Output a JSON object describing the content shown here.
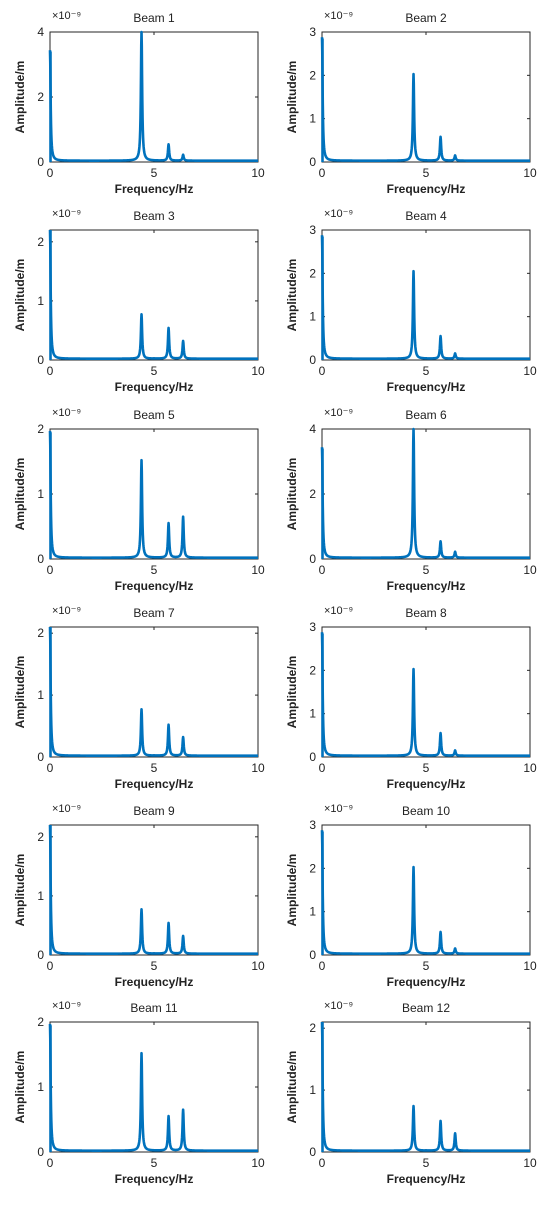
{
  "figure": {
    "line_color": "#0072BD",
    "axis_color": "#262626"
  },
  "chart_data": [
    {
      "type": "line",
      "title": "Beam 1",
      "xlabel": "Frequency/Hz",
      "ylabel": "Amplitude/m",
      "exponent_label": "×10⁻⁹",
      "xlim": [
        0,
        10
      ],
      "ylim": [
        0,
        4
      ],
      "xticks": [
        "0",
        "5",
        "10"
      ],
      "yticks": [
        "0",
        "2",
        "4"
      ],
      "grid": false,
      "series": [
        {
          "peaks": [
            {
              "x": 0.0,
              "y": 3.4
            },
            {
              "x": 4.4,
              "y": 4.0
            },
            {
              "x": 5.7,
              "y": 0.5
            },
            {
              "x": 6.4,
              "y": 0.18
            }
          ]
        }
      ]
    },
    {
      "type": "line",
      "title": "Beam 2",
      "xlabel": "Frequency/Hz",
      "ylabel": "Amplitude/m",
      "exponent_label": "×10⁻⁹",
      "xlim": [
        0,
        10
      ],
      "ylim": [
        0,
        3
      ],
      "xticks": [
        "0",
        "5",
        "10"
      ],
      "yticks": [
        "0",
        "1",
        "2",
        "3"
      ],
      "grid": false,
      "series": [
        {
          "peaks": [
            {
              "x": 0.0,
              "y": 2.85
            },
            {
              "x": 4.4,
              "y": 2.0
            },
            {
              "x": 5.7,
              "y": 0.55
            },
            {
              "x": 6.4,
              "y": 0.12
            }
          ]
        }
      ]
    },
    {
      "type": "line",
      "title": "Beam 3",
      "xlabel": "Frequency/Hz",
      "ylabel": "Amplitude/m",
      "exponent_label": "×10⁻⁹",
      "xlim": [
        0,
        10
      ],
      "ylim": [
        0,
        2.2
      ],
      "xticks": [
        "0",
        "5",
        "10"
      ],
      "yticks": [
        "0",
        "1",
        "2"
      ],
      "grid": false,
      "series": [
        {
          "peaks": [
            {
              "x": 0.0,
              "y": 2.2
            },
            {
              "x": 4.4,
              "y": 0.75
            },
            {
              "x": 5.7,
              "y": 0.52
            },
            {
              "x": 6.4,
              "y": 0.3
            }
          ]
        }
      ]
    },
    {
      "type": "line",
      "title": "Beam 4",
      "xlabel": "Frequency/Hz",
      "ylabel": "Amplitude/m",
      "exponent_label": "×10⁻⁹",
      "xlim": [
        0,
        10
      ],
      "ylim": [
        0,
        3
      ],
      "xticks": [
        "0",
        "5",
        "10"
      ],
      "yticks": [
        "0",
        "1",
        "2",
        "3"
      ],
      "grid": false,
      "series": [
        {
          "peaks": [
            {
              "x": 0.0,
              "y": 2.85
            },
            {
              "x": 4.4,
              "y": 2.02
            },
            {
              "x": 5.7,
              "y": 0.52
            },
            {
              "x": 6.4,
              "y": 0.12
            }
          ]
        }
      ]
    },
    {
      "type": "line",
      "title": "Beam 5",
      "xlabel": "Frequency/Hz",
      "ylabel": "Amplitude/m",
      "exponent_label": "×10⁻⁹",
      "xlim": [
        0,
        10
      ],
      "ylim": [
        0,
        2
      ],
      "xticks": [
        "0",
        "5",
        "10"
      ],
      "yticks": [
        "0",
        "1",
        "2"
      ],
      "grid": false,
      "series": [
        {
          "peaks": [
            {
              "x": 0.0,
              "y": 1.95
            },
            {
              "x": 4.4,
              "y": 1.5
            },
            {
              "x": 5.7,
              "y": 0.53
            },
            {
              "x": 6.4,
              "y": 0.63
            }
          ]
        }
      ]
    },
    {
      "type": "line",
      "title": "Beam 6",
      "xlabel": "Frequency/Hz",
      "ylabel": "Amplitude/m",
      "exponent_label": "×10⁻⁹",
      "xlim": [
        0,
        10
      ],
      "ylim": [
        0,
        4
      ],
      "xticks": [
        "0",
        "5",
        "10"
      ],
      "yticks": [
        "0",
        "2",
        "4"
      ],
      "grid": false,
      "series": [
        {
          "peaks": [
            {
              "x": 0.0,
              "y": 3.4
            },
            {
              "x": 4.4,
              "y": 4.0
            },
            {
              "x": 5.7,
              "y": 0.5
            },
            {
              "x": 6.4,
              "y": 0.18
            }
          ]
        }
      ]
    },
    {
      "type": "line",
      "title": "Beam 7",
      "xlabel": "Frequency/Hz",
      "ylabel": "Amplitude/m",
      "exponent_label": "×10⁻⁹",
      "xlim": [
        0,
        10
      ],
      "ylim": [
        0,
        2.1
      ],
      "xticks": [
        "0",
        "5",
        "10"
      ],
      "yticks": [
        "0",
        "1",
        "2"
      ],
      "grid": false,
      "series": [
        {
          "peaks": [
            {
              "x": 0.0,
              "y": 2.1
            },
            {
              "x": 4.4,
              "y": 0.75
            },
            {
              "x": 5.7,
              "y": 0.5
            },
            {
              "x": 6.4,
              "y": 0.3
            }
          ]
        }
      ]
    },
    {
      "type": "line",
      "title": "Beam 8",
      "xlabel": "Frequency/Hz",
      "ylabel": "Amplitude/m",
      "exponent_label": "×10⁻⁹",
      "xlim": [
        0,
        10
      ],
      "ylim": [
        0,
        3
      ],
      "xticks": [
        "0",
        "5",
        "10"
      ],
      "yticks": [
        "0",
        "1",
        "2",
        "3"
      ],
      "grid": false,
      "series": [
        {
          "peaks": [
            {
              "x": 0.0,
              "y": 2.85
            },
            {
              "x": 4.4,
              "y": 2.0
            },
            {
              "x": 5.7,
              "y": 0.52
            },
            {
              "x": 6.4,
              "y": 0.12
            }
          ]
        }
      ]
    },
    {
      "type": "line",
      "title": "Beam 9",
      "xlabel": "Frequency/Hz",
      "ylabel": "Amplitude/m",
      "exponent_label": "×10⁻⁹",
      "xlim": [
        0,
        10
      ],
      "ylim": [
        0,
        2.2
      ],
      "xticks": [
        "0",
        "5",
        "10"
      ],
      "yticks": [
        "0",
        "1",
        "2"
      ],
      "grid": false,
      "series": [
        {
          "peaks": [
            {
              "x": 0.0,
              "y": 2.2
            },
            {
              "x": 4.4,
              "y": 0.75
            },
            {
              "x": 5.7,
              "y": 0.52
            },
            {
              "x": 6.4,
              "y": 0.3
            }
          ]
        }
      ]
    },
    {
      "type": "line",
      "title": "Beam 10",
      "xlabel": "Frequency/Hz",
      "ylabel": "Amplitude/m",
      "exponent_label": "×10⁻⁹",
      "xlim": [
        0,
        10
      ],
      "ylim": [
        0,
        3
      ],
      "xticks": [
        "0",
        "5",
        "10"
      ],
      "yticks": [
        "0",
        "1",
        "2",
        "3"
      ],
      "grid": false,
      "series": [
        {
          "peaks": [
            {
              "x": 0.0,
              "y": 2.85
            },
            {
              "x": 4.4,
              "y": 2.0
            },
            {
              "x": 5.7,
              "y": 0.5
            },
            {
              "x": 6.4,
              "y": 0.12
            }
          ]
        }
      ]
    },
    {
      "type": "line",
      "title": "Beam 11",
      "xlabel": "Frequency/Hz",
      "ylabel": "Amplitude/m",
      "exponent_label": "×10⁻⁹",
      "xlim": [
        0,
        10
      ],
      "ylim": [
        0,
        2
      ],
      "xticks": [
        "0",
        "5",
        "10"
      ],
      "yticks": [
        "0",
        "1",
        "2"
      ],
      "grid": false,
      "series": [
        {
          "peaks": [
            {
              "x": 0.0,
              "y": 1.95
            },
            {
              "x": 4.4,
              "y": 1.5
            },
            {
              "x": 5.7,
              "y": 0.53
            },
            {
              "x": 6.4,
              "y": 0.63
            }
          ]
        }
      ]
    },
    {
      "type": "line",
      "title": "Beam 12",
      "xlabel": "Frequency/Hz",
      "ylabel": "Amplitude/m",
      "exponent_label": "×10⁻⁹",
      "xlim": [
        0,
        10
      ],
      "ylim": [
        0,
        2.1
      ],
      "xticks": [
        "0",
        "5",
        "10"
      ],
      "yticks": [
        "0",
        "1",
        "2"
      ],
      "grid": false,
      "series": [
        {
          "peaks": [
            {
              "x": 0.0,
              "y": 2.1
            },
            {
              "x": 4.4,
              "y": 0.72
            },
            {
              "x": 5.7,
              "y": 0.48
            },
            {
              "x": 6.4,
              "y": 0.28
            }
          ]
        }
      ]
    }
  ]
}
